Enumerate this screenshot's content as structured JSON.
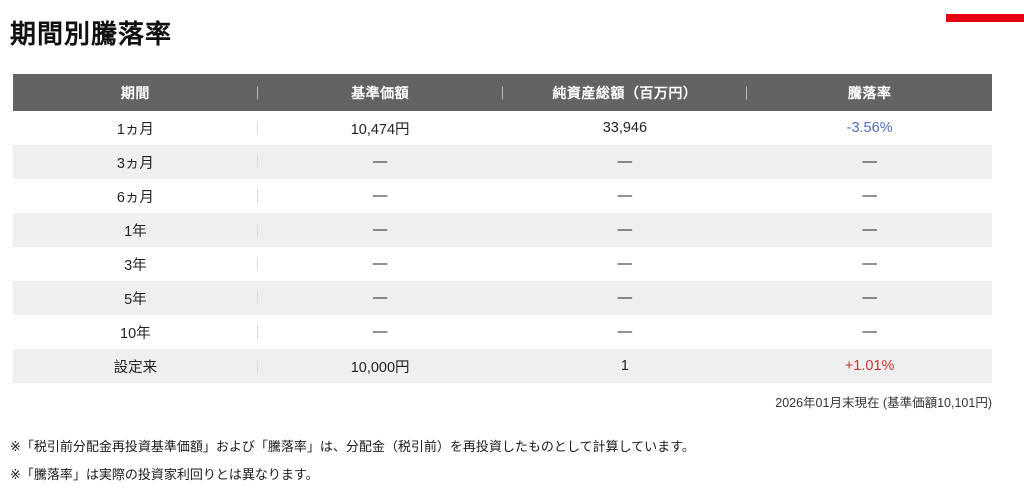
{
  "page": {
    "title": "期間別騰落率"
  },
  "colors": {
    "accent_red": "#e60012",
    "header_bg": "#636363",
    "row_alt_bg": "#efefef",
    "negative_change_blue": "#5168b5",
    "positive_change_red": "#cc3333"
  },
  "table": {
    "columns": {
      "period": "期間",
      "nav": "基準価額",
      "net_assets": "純資産総額（百万円）",
      "change": "騰落率"
    },
    "rows": [
      {
        "period": "1ヵ月",
        "nav": "10,474円",
        "net_assets": "33,946",
        "change": "-3.56%",
        "change_color": "#5168b5"
      },
      {
        "period": "3ヵ月",
        "nav": "—",
        "net_assets": "—",
        "change": "—"
      },
      {
        "period": "6ヵ月",
        "nav": "—",
        "net_assets": "—",
        "change": "—"
      },
      {
        "period": "1年",
        "nav": "—",
        "net_assets": "—",
        "change": "—"
      },
      {
        "period": "3年",
        "nav": "—",
        "net_assets": "—",
        "change": "—"
      },
      {
        "period": "5年",
        "nav": "—",
        "net_assets": "—",
        "change": "—"
      },
      {
        "period": "10年",
        "nav": "—",
        "net_assets": "—",
        "change": "—"
      },
      {
        "period": "設定来",
        "nav": "10,000円",
        "net_assets": "1",
        "change": "+1.01%",
        "change_color": "#cc3333"
      }
    ],
    "as_of": "2026年01月末現在 (基準価額10,101円)"
  },
  "footnotes": [
    "※「税引前分配金再投資基準価額」および「騰落率」は、分配金（税引前）を再投資したものとして計算しています。",
    "※「騰落率」は実際の投資家利回りとは異なります。"
  ]
}
